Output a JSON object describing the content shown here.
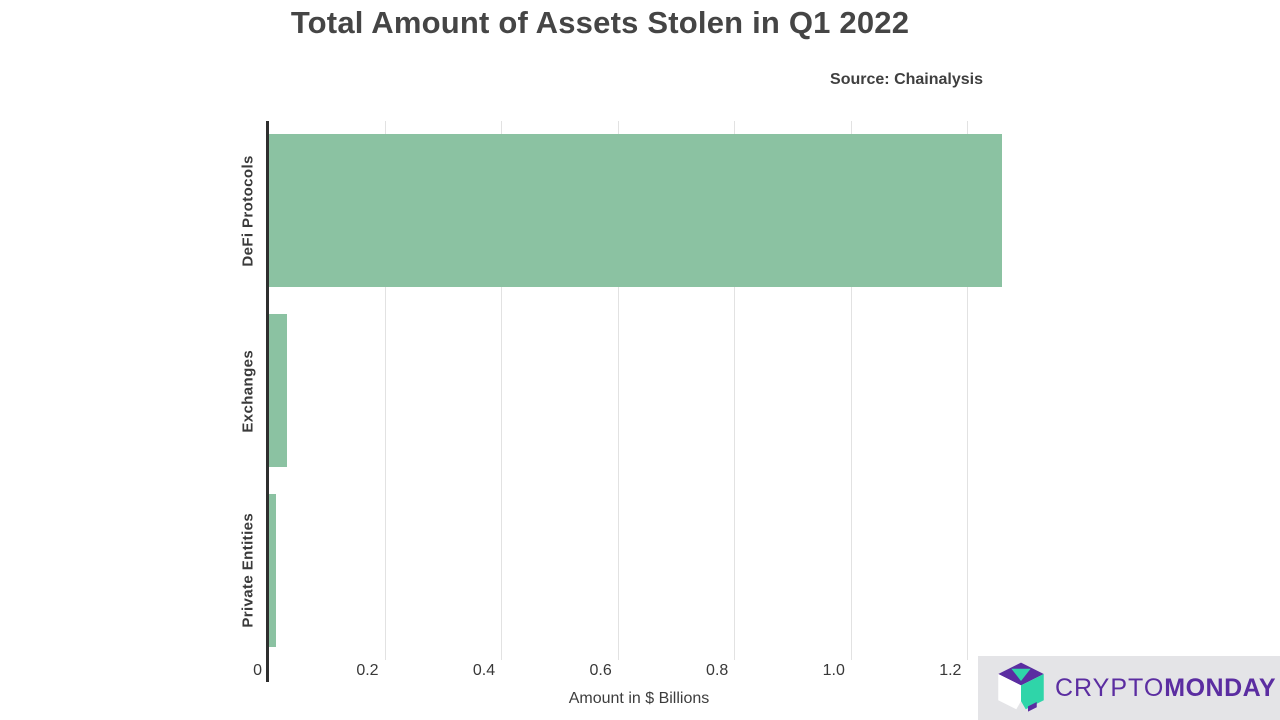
{
  "chart_data": {
    "type": "bar",
    "orientation": "horizontal",
    "title": "Total Amount of Assets Stolen in Q1 2022",
    "subtitle": "Source: Chainalysis",
    "categories": [
      "DeFi Protocols",
      "Exchanges",
      "Private Entities"
    ],
    "values": [
      1.26,
      0.033,
      0.013
    ],
    "xlabel": "Amount in $ Billions",
    "xlim": [
      0,
      1.273
    ],
    "xticks": [
      0,
      0.2,
      0.4,
      0.6,
      0.8,
      1.0,
      1.2
    ],
    "xtick_labels": [
      "0",
      "0.2",
      "0.4",
      "0.6",
      "0.8",
      "1.0",
      "1.2"
    ],
    "grid": "vertical-only",
    "legend": "none",
    "bar_color": "#8bc2a2",
    "axis_color": "#2e2e2e",
    "gridline_color": "#e2e2e2"
  },
  "branding": {
    "crypto": "CRYPTO",
    "monday": "MONDAY",
    "purple": "#5b2da1",
    "teal": "#2fd5a9",
    "panel_bg": "#e4e4e7"
  }
}
